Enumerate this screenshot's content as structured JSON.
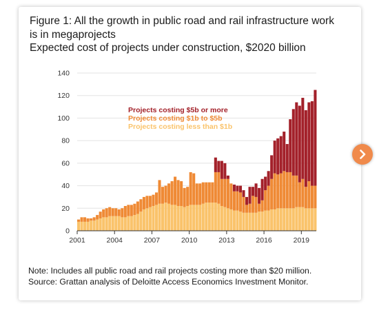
{
  "figure": {
    "title_line1": "Figure 1: All the growth in public road and rail infrastructure work",
    "title_line2": "is in megaprojects",
    "subtitle": "Expected cost of projects under construction, $2020 billion",
    "note": "Note: Includes all public road and rail projects costing more than $20 million.",
    "source": "Source: Grattan analysis of Deloitte Access Economics Investment Monitor."
  },
  "navigation": {
    "next_icon": "chevron-right-icon",
    "accent_color": "#f08a4b"
  },
  "chart_data": {
    "type": "bar",
    "stacked": true,
    "xlabel": "",
    "ylabel": "",
    "ylim": [
      0,
      140
    ],
    "yticks": [
      0,
      20,
      40,
      60,
      80,
      100,
      120,
      140
    ],
    "xlim": [
      2001,
      2020.2
    ],
    "xticks": [
      2001,
      2004,
      2007,
      2010,
      2013,
      2016,
      2019
    ],
    "grid": "horizontal",
    "legend_placement": "top-center",
    "x": [
      2001.0,
      2001.25,
      2001.5,
      2001.75,
      2002.0,
      2002.25,
      2002.5,
      2002.75,
      2003.0,
      2003.25,
      2003.5,
      2003.75,
      2004.0,
      2004.25,
      2004.5,
      2004.75,
      2005.0,
      2005.25,
      2005.5,
      2005.75,
      2006.0,
      2006.25,
      2006.5,
      2006.75,
      2007.0,
      2007.25,
      2007.5,
      2007.75,
      2008.0,
      2008.25,
      2008.5,
      2008.75,
      2009.0,
      2009.25,
      2009.5,
      2009.75,
      2010.0,
      2010.25,
      2010.5,
      2010.75,
      2011.0,
      2011.25,
      2011.5,
      2011.75,
      2012.0,
      2012.25,
      2012.5,
      2012.75,
      2013.0,
      2013.25,
      2013.5,
      2013.75,
      2014.0,
      2014.25,
      2014.5,
      2014.75,
      2015.0,
      2015.25,
      2015.5,
      2015.75,
      2016.0,
      2016.25,
      2016.5,
      2016.75,
      2017.0,
      2017.25,
      2017.5,
      2017.75,
      2018.0,
      2018.25,
      2018.5,
      2018.75,
      2019.0,
      2019.25,
      2019.5,
      2019.75,
      2020.0
    ],
    "series": [
      {
        "name": "Projects costing less than $1b",
        "color": "#fac36b",
        "values": [
          8,
          8,
          8,
          8,
          9,
          9,
          10,
          11,
          12,
          12,
          13,
          13,
          13,
          13,
          12,
          12,
          13,
          13,
          14,
          15,
          17,
          19,
          20,
          21,
          22,
          23,
          24,
          24,
          25,
          24,
          23,
          23,
          22,
          22,
          21,
          22,
          23,
          23,
          23,
          23,
          24,
          25,
          25,
          25,
          25,
          24,
          22,
          21,
          20,
          19,
          18,
          18,
          17,
          16,
          16,
          16,
          16,
          16,
          17,
          17,
          18,
          18,
          19,
          19,
          20,
          20,
          20,
          20,
          20,
          20,
          21,
          21,
          21,
          20,
          20,
          20,
          20
        ]
      },
      {
        "name": "Projects costing $1b to $5b",
        "color": "#ef8a35",
        "values": [
          2,
          4,
          4,
          3,
          2,
          3,
          4,
          6,
          7,
          8,
          8,
          7,
          7,
          6,
          8,
          10,
          10,
          10,
          10,
          11,
          11,
          11,
          11,
          10,
          10,
          11,
          21,
          15,
          15,
          18,
          21,
          25,
          23,
          22,
          17,
          17,
          29,
          28,
          19,
          19,
          19,
          18,
          18,
          18,
          27,
          28,
          24,
          25,
          26,
          23,
          17,
          17,
          17,
          14,
          7,
          8,
          15,
          14,
          7,
          10,
          18,
          22,
          27,
          32,
          30,
          31,
          33,
          32,
          32,
          29,
          28,
          22,
          25,
          19,
          24,
          20,
          20
        ]
      },
      {
        "name": "Projects costing $5b or more",
        "color": "#a3212a",
        "values": [
          0,
          0,
          0,
          0,
          0,
          0,
          0,
          0,
          0,
          0,
          0,
          0,
          0,
          0,
          0,
          0,
          0,
          0,
          0,
          0,
          0,
          0,
          0,
          0,
          0,
          0,
          0,
          0,
          0,
          0,
          0,
          0,
          0,
          0,
          0,
          0,
          0,
          0,
          0,
          0,
          0,
          0,
          0,
          0,
          13,
          10,
          16,
          14,
          3,
          0,
          6,
          5,
          6,
          6,
          7,
          15,
          8,
          12,
          14,
          19,
          12,
          13,
          21,
          29,
          32,
          33,
          35,
          25,
          47,
          59,
          65,
          68,
          72,
          68,
          70,
          75,
          85
        ]
      }
    ]
  }
}
